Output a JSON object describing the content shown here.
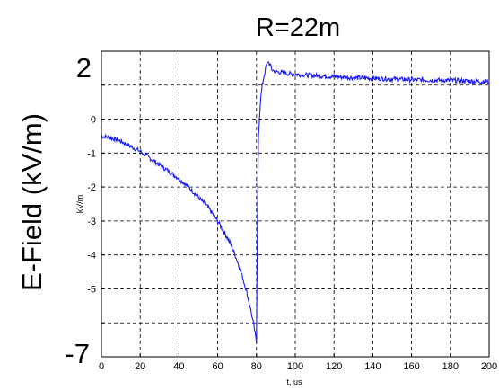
{
  "chart_data": {
    "type": "line",
    "title": "R=22m",
    "outer_ylabel": "E-Field (kV/m)",
    "outer_y_top_label": "2",
    "outer_y_bottom_label": "-7",
    "xlabel": "t, us",
    "ylabel": "kV/m",
    "xlim": [
      0,
      200
    ],
    "ylim": [
      -7,
      2
    ],
    "grid": true,
    "xticks": [
      0,
      20,
      40,
      60,
      80,
      100,
      120,
      140,
      160,
      180,
      200
    ],
    "yticks": [
      -6,
      -5,
      -4,
      -3,
      -2,
      -1,
      0,
      1
    ],
    "yticklabels": [
      "",
      "-5",
      "-4",
      "-3",
      "-2",
      "-1",
      "0",
      ""
    ],
    "line_color": "#1a1aff",
    "series": [
      {
        "x": [
          0,
          5,
          10,
          15,
          20,
          25,
          30,
          35,
          40,
          45,
          50,
          55,
          60,
          63,
          66,
          69,
          72,
          75,
          77,
          79,
          80,
          80.5,
          81,
          82,
          83,
          84,
          85,
          86,
          87,
          88,
          90,
          95,
          100,
          110,
          120,
          130,
          140,
          150,
          160,
          170,
          180,
          190,
          200
        ],
        "y": [
          -0.5,
          -0.55,
          -0.65,
          -0.8,
          -0.95,
          -1.15,
          -1.35,
          -1.55,
          -1.75,
          -2.0,
          -2.3,
          -2.6,
          -3.0,
          -3.3,
          -3.6,
          -4.0,
          -4.5,
          -5.1,
          -5.6,
          -6.2,
          -6.6,
          -3.0,
          -0.5,
          0.5,
          1.0,
          1.3,
          1.55,
          1.7,
          1.6,
          1.45,
          1.4,
          1.35,
          1.32,
          1.28,
          1.25,
          1.22,
          1.2,
          1.18,
          1.16,
          1.15,
          1.14,
          1.12,
          1.1
        ]
      }
    ]
  }
}
